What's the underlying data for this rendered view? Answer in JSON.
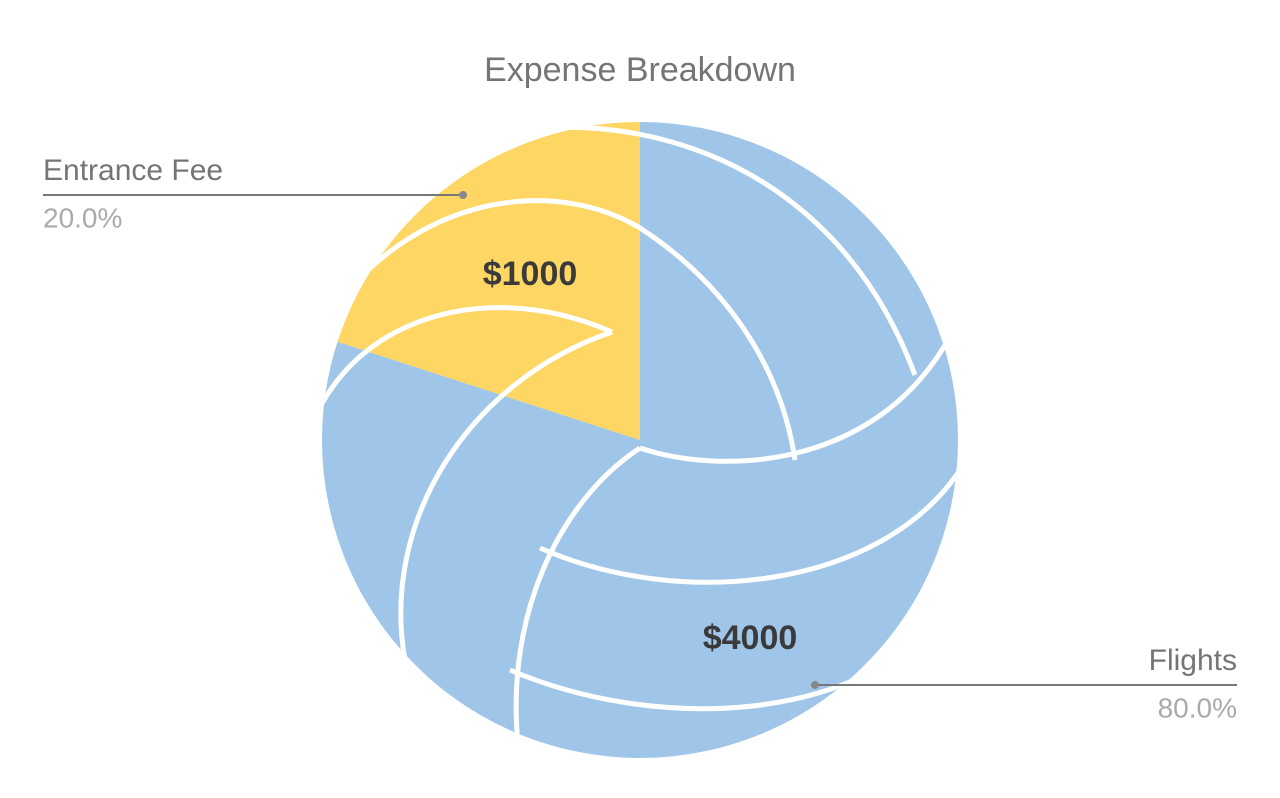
{
  "chart_data": {
    "type": "pie",
    "title": "Expense Breakdown",
    "categories": [
      "Flights",
      "Entrance Fee"
    ],
    "values": [
      4000,
      1000
    ],
    "value_labels": [
      "$4000",
      "$1000"
    ],
    "percent_labels": [
      "80.0%",
      "20.0%"
    ],
    "colors": [
      "#9fc5e8",
      "#fdd663"
    ]
  }
}
